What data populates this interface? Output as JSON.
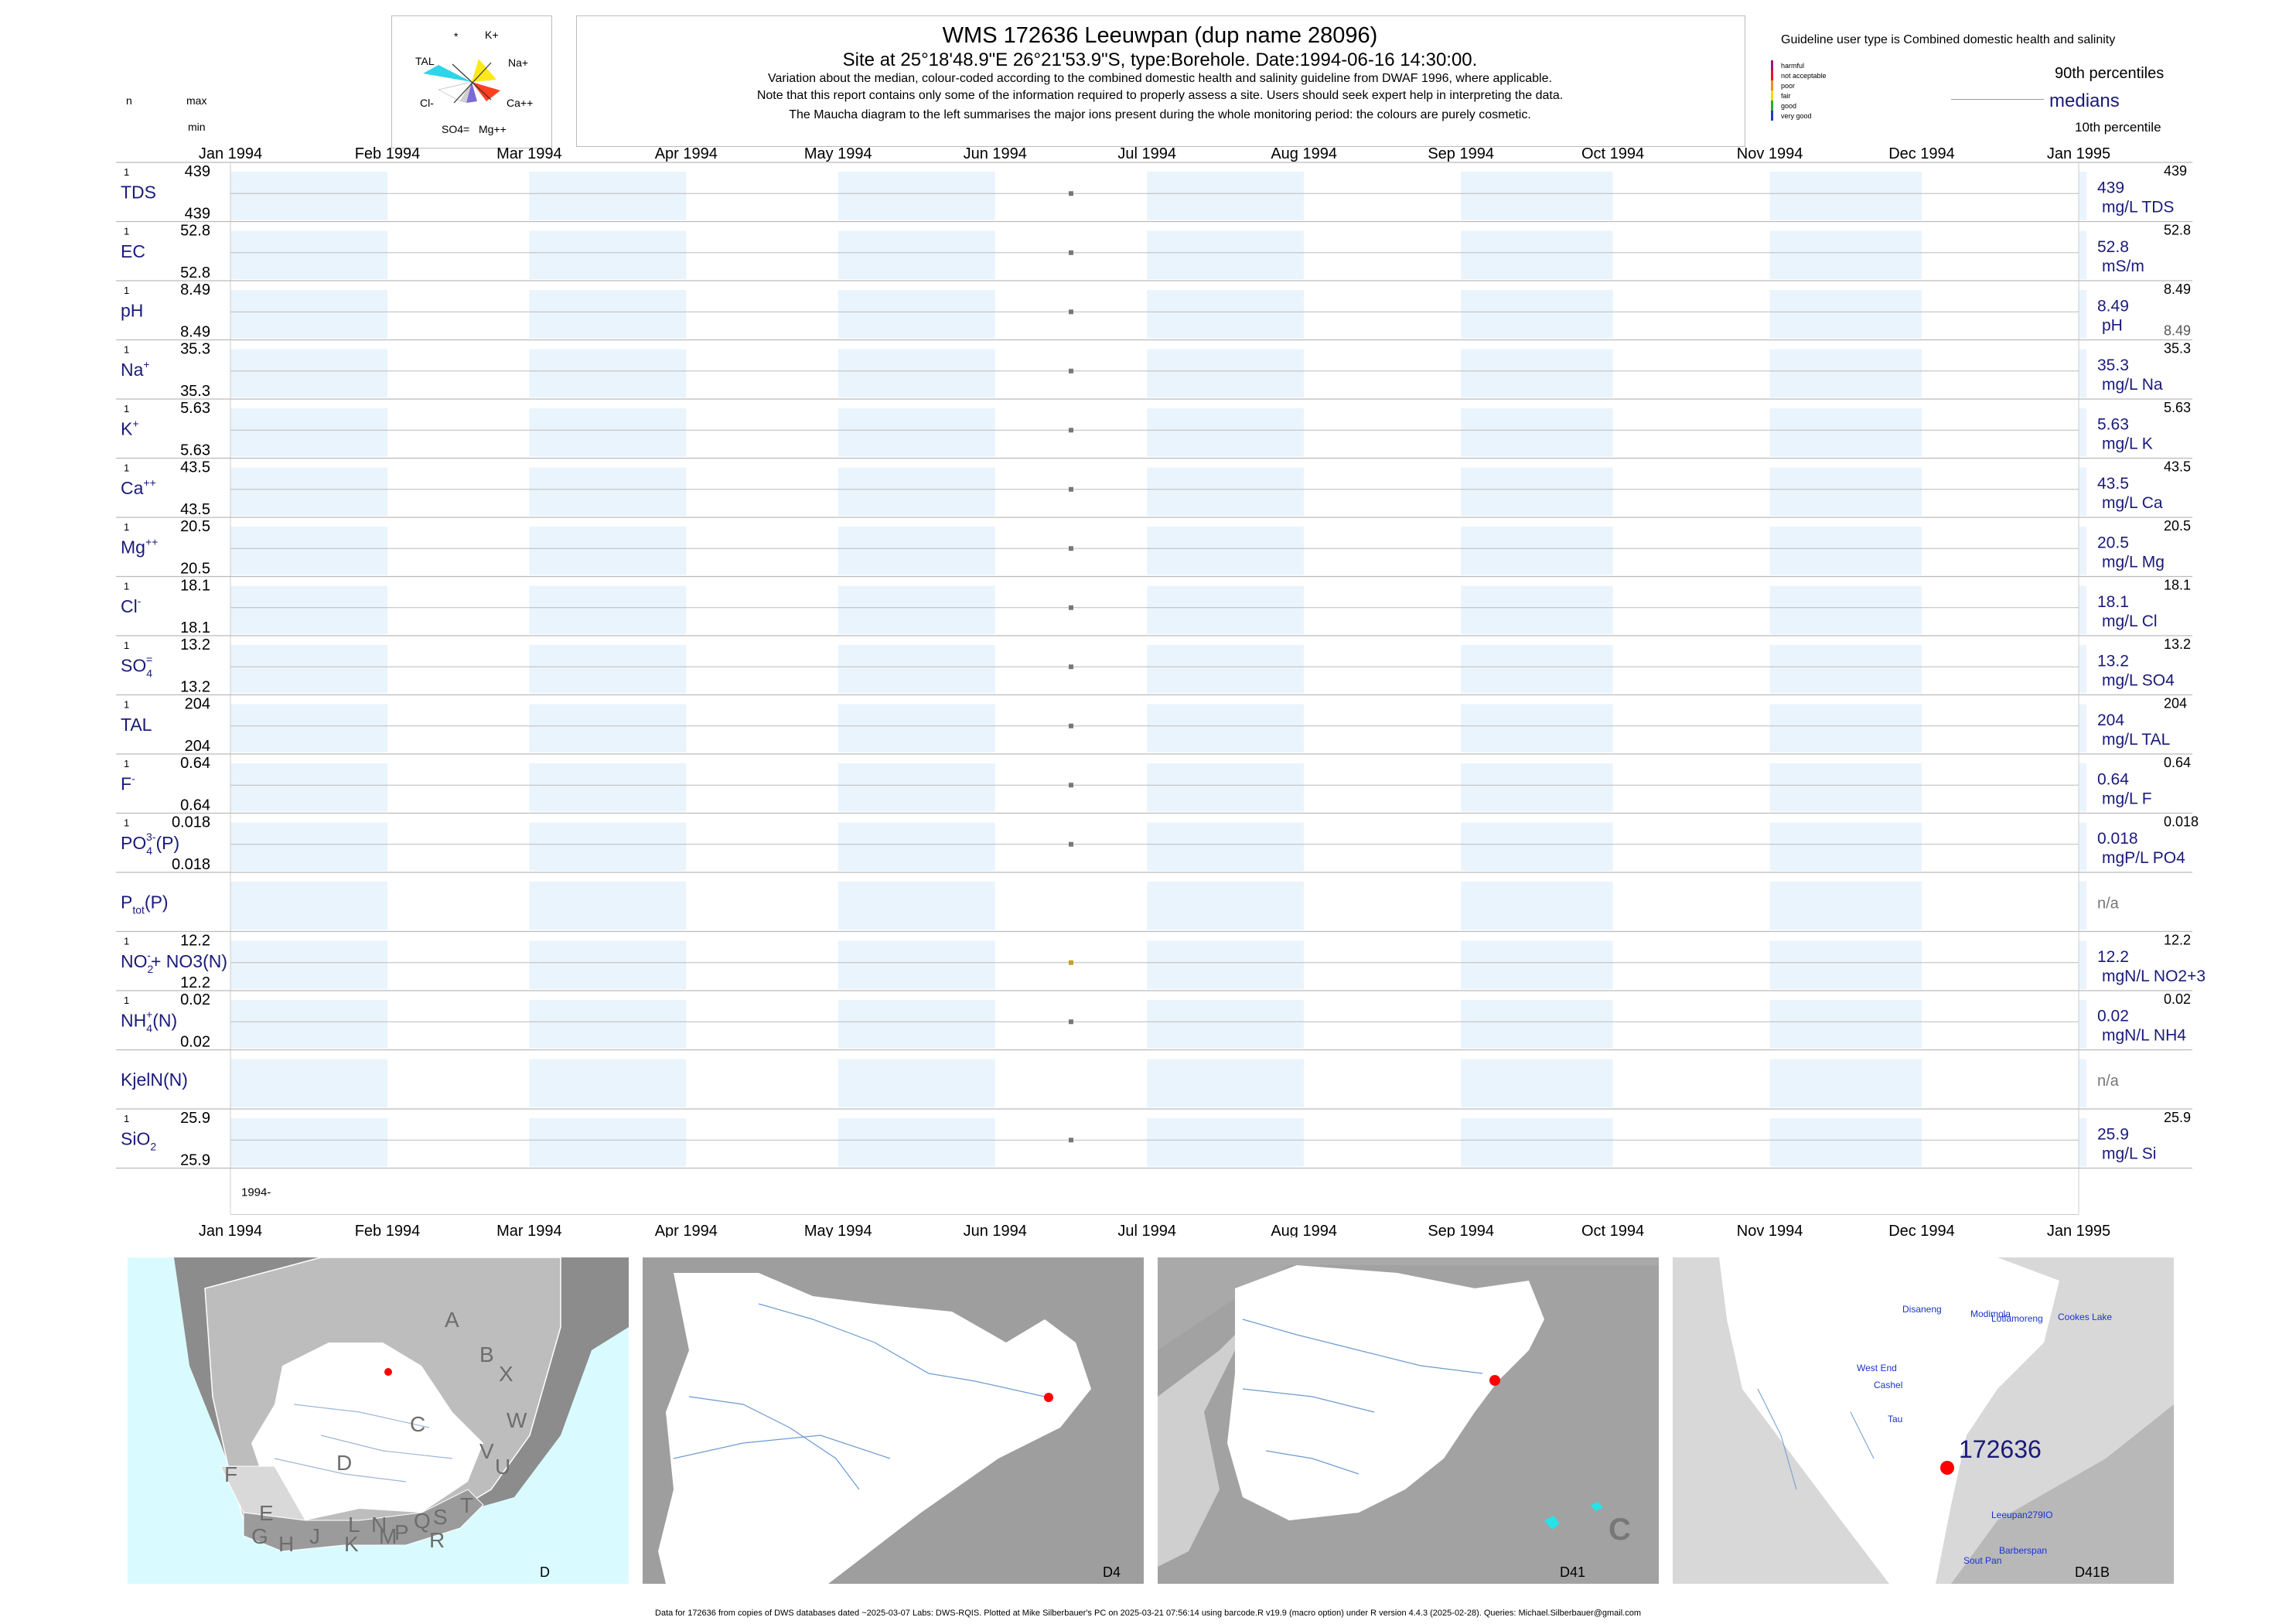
{
  "header": {
    "title": "WMS 172636  Leeuwpan (dup name 28096)",
    "subtitle": "Site at 25°18'48.9\"E 26°21'53.9\"S, type:Borehole. Date:1994-06-16 14:30:00.",
    "note1": "Variation about the median,  colour-coded according to the combined domestic health and salinity guideline from DWAF 1996, where applicable.",
    "note2": "Note that this report contains only some of the information required to properly assess a site. Users should seek expert help in interpreting the data.",
    "note3": "The Maucha diagram to the left summarises the major ions present during the whole monitoring period: the colours are purely cosmetic."
  },
  "left_header": {
    "n": "n",
    "max": "max",
    "min": "min"
  },
  "maucha": {
    "labels": [
      "*",
      "K+",
      "TAL",
      "Na+",
      "Cl-",
      "Ca++",
      "SO4=",
      "Mg++"
    ]
  },
  "legend": {
    "guideline_text": "Guideline user type is Combined domestic health and salinity",
    "p90": "90th percentiles",
    "medians": "medians",
    "p10": "10th percentile",
    "classes": [
      {
        "label": "harmful",
        "color": "#9b1b6e"
      },
      {
        "label": "not acceptable",
        "color": "#e8142e"
      },
      {
        "label": "poor",
        "color": "#f28c28"
      },
      {
        "label": "fair",
        "color": "#f5d818"
      },
      {
        "label": "good",
        "color": "#2eab2e"
      },
      {
        "label": "very good",
        "color": "#1f3fbf"
      }
    ]
  },
  "chart_data": {
    "type": "scatter",
    "x_range": [
      "1994-01-01",
      "1995-01-01"
    ],
    "month_labels": [
      "Jan 1994",
      "Feb 1994",
      "Mar 1994",
      "Apr 1994",
      "May 1994",
      "Jun 1994",
      "Jul 1994",
      "Aug 1994",
      "Sep 1994",
      "Oct 1994",
      "Nov 1994",
      "Dec 1994",
      "Jan 1995"
    ],
    "year_label": "1994-",
    "sample_date": "1994-06-16",
    "colors": {
      "shade": "#eaf4fd",
      "point": "#777777",
      "point_fair": "#c2a12b",
      "label": "#1a1a7a"
    },
    "rows": [
      {
        "name": "TDS",
        "sup": "",
        "sub": "",
        "tail": "",
        "n": "1",
        "max": "439",
        "min": "439",
        "median": "439",
        "unit": "mg/L TDS",
        "p90": "439",
        "p10": "",
        "value": 439
      },
      {
        "name": "EC",
        "sup": "",
        "sub": "",
        "tail": "",
        "n": "1",
        "max": "52.8",
        "min": "52.8",
        "median": "52.8",
        "unit": "mS/m",
        "p90": "52.8",
        "p10": "",
        "value": 52.8
      },
      {
        "name": "pH",
        "sup": "",
        "sub": "",
        "tail": "",
        "n": "1",
        "max": "8.49",
        "min": "8.49",
        "median": "8.49",
        "unit": "pH",
        "p90": "8.49",
        "p10": "8.49",
        "value": 8.49
      },
      {
        "name": "Na",
        "sup": "+",
        "sub": "",
        "tail": "",
        "n": "1",
        "max": "35.3",
        "min": "35.3",
        "median": "35.3",
        "unit": "mg/L Na",
        "p90": "35.3",
        "p10": "",
        "value": 35.3
      },
      {
        "name": "K",
        "sup": "+",
        "sub": "",
        "tail": "",
        "n": "1",
        "max": "5.63",
        "min": "5.63",
        "median": "5.63",
        "unit": "mg/L K",
        "p90": "5.63",
        "p10": "",
        "value": 5.63
      },
      {
        "name": "Ca",
        "sup": "++",
        "sub": "",
        "tail": "",
        "n": "1",
        "max": "43.5",
        "min": "43.5",
        "median": "43.5",
        "unit": "mg/L Ca",
        "p90": "43.5",
        "p10": "",
        "value": 43.5
      },
      {
        "name": "Mg",
        "sup": "++",
        "sub": "",
        "tail": "",
        "n": "1",
        "max": "20.5",
        "min": "20.5",
        "median": "20.5",
        "unit": "mg/L Mg",
        "p90": "20.5",
        "p10": "",
        "value": 20.5
      },
      {
        "name": "Cl",
        "sup": "-",
        "sub": "",
        "tail": "",
        "n": "1",
        "max": "18.1",
        "min": "18.1",
        "median": "18.1",
        "unit": "mg/L Cl",
        "p90": "18.1",
        "p10": "",
        "value": 18.1
      },
      {
        "name": "SO",
        "sup": "=",
        "sub": "4",
        "tail": "",
        "n": "1",
        "max": "13.2",
        "min": "13.2",
        "median": "13.2",
        "unit": "mg/L SO4",
        "p90": "13.2",
        "p10": "",
        "value": 13.2
      },
      {
        "name": "TAL",
        "sup": "",
        "sub": "",
        "tail": "",
        "n": "1",
        "max": "204",
        "min": "204",
        "median": "204",
        "unit": "mg/L TAL",
        "p90": "204",
        "p10": "",
        "value": 204
      },
      {
        "name": "F",
        "sup": "-",
        "sub": "",
        "tail": "",
        "n": "1",
        "max": "0.64",
        "min": "0.64",
        "median": "0.64",
        "unit": "mg/L F",
        "p90": "0.64",
        "p10": "",
        "value": 0.64
      },
      {
        "name": "PO",
        "sup": "3-",
        "sub": "4",
        "tail": "(P)",
        "n": "1",
        "max": "0.018",
        "min": "0.018",
        "median": "0.018",
        "unit": "mgP/L PO4",
        "p90": "0.018",
        "p10": "",
        "value": 0.018
      },
      {
        "name": "P",
        "sup": "",
        "sub": "tot",
        "tail": "(P)",
        "n": "",
        "max": "",
        "min": "",
        "median": "n/a",
        "unit": "",
        "p90": "",
        "p10": "",
        "value": null
      },
      {
        "name": "NO",
        "sup": "-",
        "sub": "2",
        "tail": "+ NO3(N)",
        "n": "1",
        "max": "12.2",
        "min": "12.2",
        "median": "12.2",
        "unit": "mgN/L NO2+3",
        "p90": "12.2",
        "p10": "",
        "value": 12.2,
        "fair": true
      },
      {
        "name": "NH",
        "sup": "+",
        "sub": "4",
        "tail": "(N)",
        "n": "1",
        "max": "0.02",
        "min": "0.02",
        "median": "0.02",
        "unit": "mgN/L NH4",
        "p90": "0.02",
        "p10": "",
        "value": 0.02
      },
      {
        "name": "KjelN(N)",
        "sup": "",
        "sub": "",
        "tail": "",
        "n": "",
        "max": "",
        "min": "",
        "median": "n/a",
        "unit": "",
        "p90": "",
        "p10": "",
        "value": null
      },
      {
        "name": "SiO",
        "sup": "",
        "sub": "2",
        "tail": "",
        "n": "1",
        "max": "25.9",
        "min": "25.9",
        "median": "25.9",
        "unit": "mg/L Si",
        "p90": "25.9",
        "p10": "",
        "value": 25.9
      }
    ]
  },
  "maps": {
    "panel1": {
      "label": "D",
      "regions": [
        "A",
        "B",
        "X",
        "W",
        "C",
        "V",
        "U",
        "D",
        "F",
        "E",
        "T",
        "G",
        "H",
        "J",
        "K",
        "L",
        "M",
        "N",
        "P",
        "Q",
        "R",
        "S"
      ]
    },
    "panel2": {
      "label": "D4"
    },
    "panel3": {
      "label": "D41",
      "region": "C"
    },
    "panel4": {
      "label": "D41B",
      "site": "172636",
      "places": [
        "Disaneng",
        "Modimola",
        "Lotlamoreng",
        "Cookes Lake",
        "West End",
        "Cashel",
        "Tau",
        "Leeupan279IO",
        "Barberspan",
        "Sout Pan"
      ]
    },
    "colors": {
      "sea": "#d9fbff",
      "land": "#bdbdbd",
      "catchment": "#ffffff",
      "site": "#ff0000",
      "river": "#3a7fc4",
      "dark": "#8c8c8c"
    }
  },
  "footer": "Data for 172636 from copies of DWS databases dated ~2025-03-07 Labs: DWS-RQIS. Plotted at Mike Silberbauer's PC on 2025-03-21 07:56:14 using barcode.R v19.9 (macro option) under R version 4.4.3 (2025-02-28). Queries: Michael.Silberbauer@gmail.com"
}
